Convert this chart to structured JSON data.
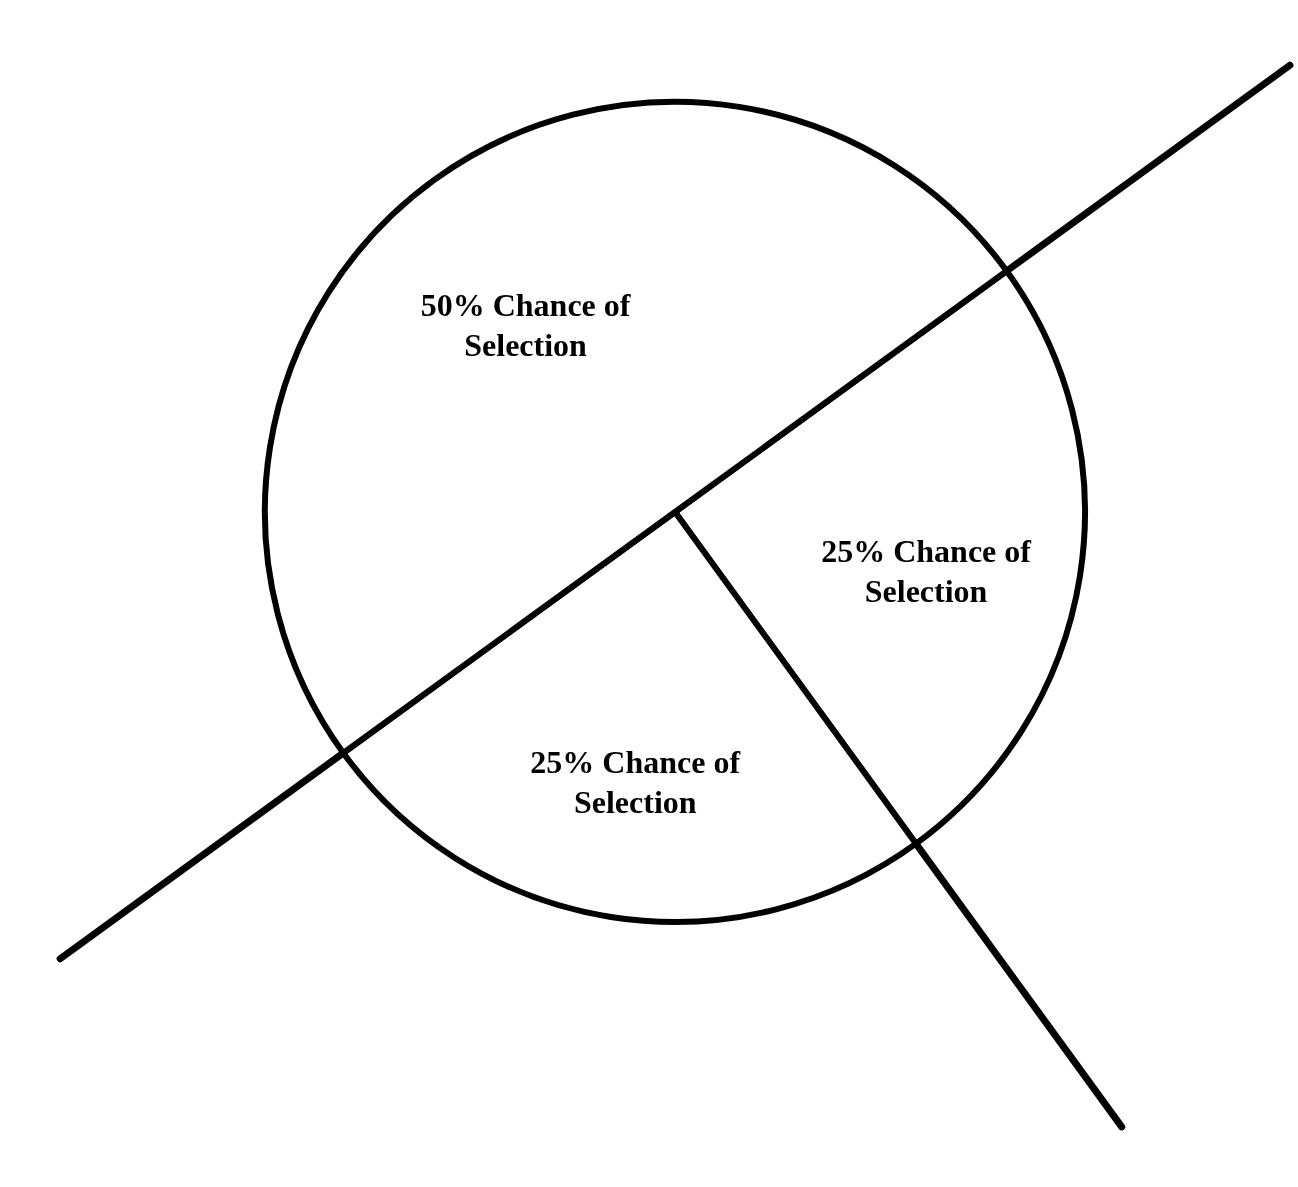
{
  "chart_data": {
    "type": "pie",
    "categories": [
      null,
      null,
      null
    ],
    "values": [
      25,
      25,
      50
    ],
    "colors": [
      "#ffffff",
      "#ffffff",
      "#ffffff"
    ],
    "value_labels": [
      "25% Chance of Selection",
      "25% Chance of Selection",
      "50% Chance of Selection"
    ]
  }
}
